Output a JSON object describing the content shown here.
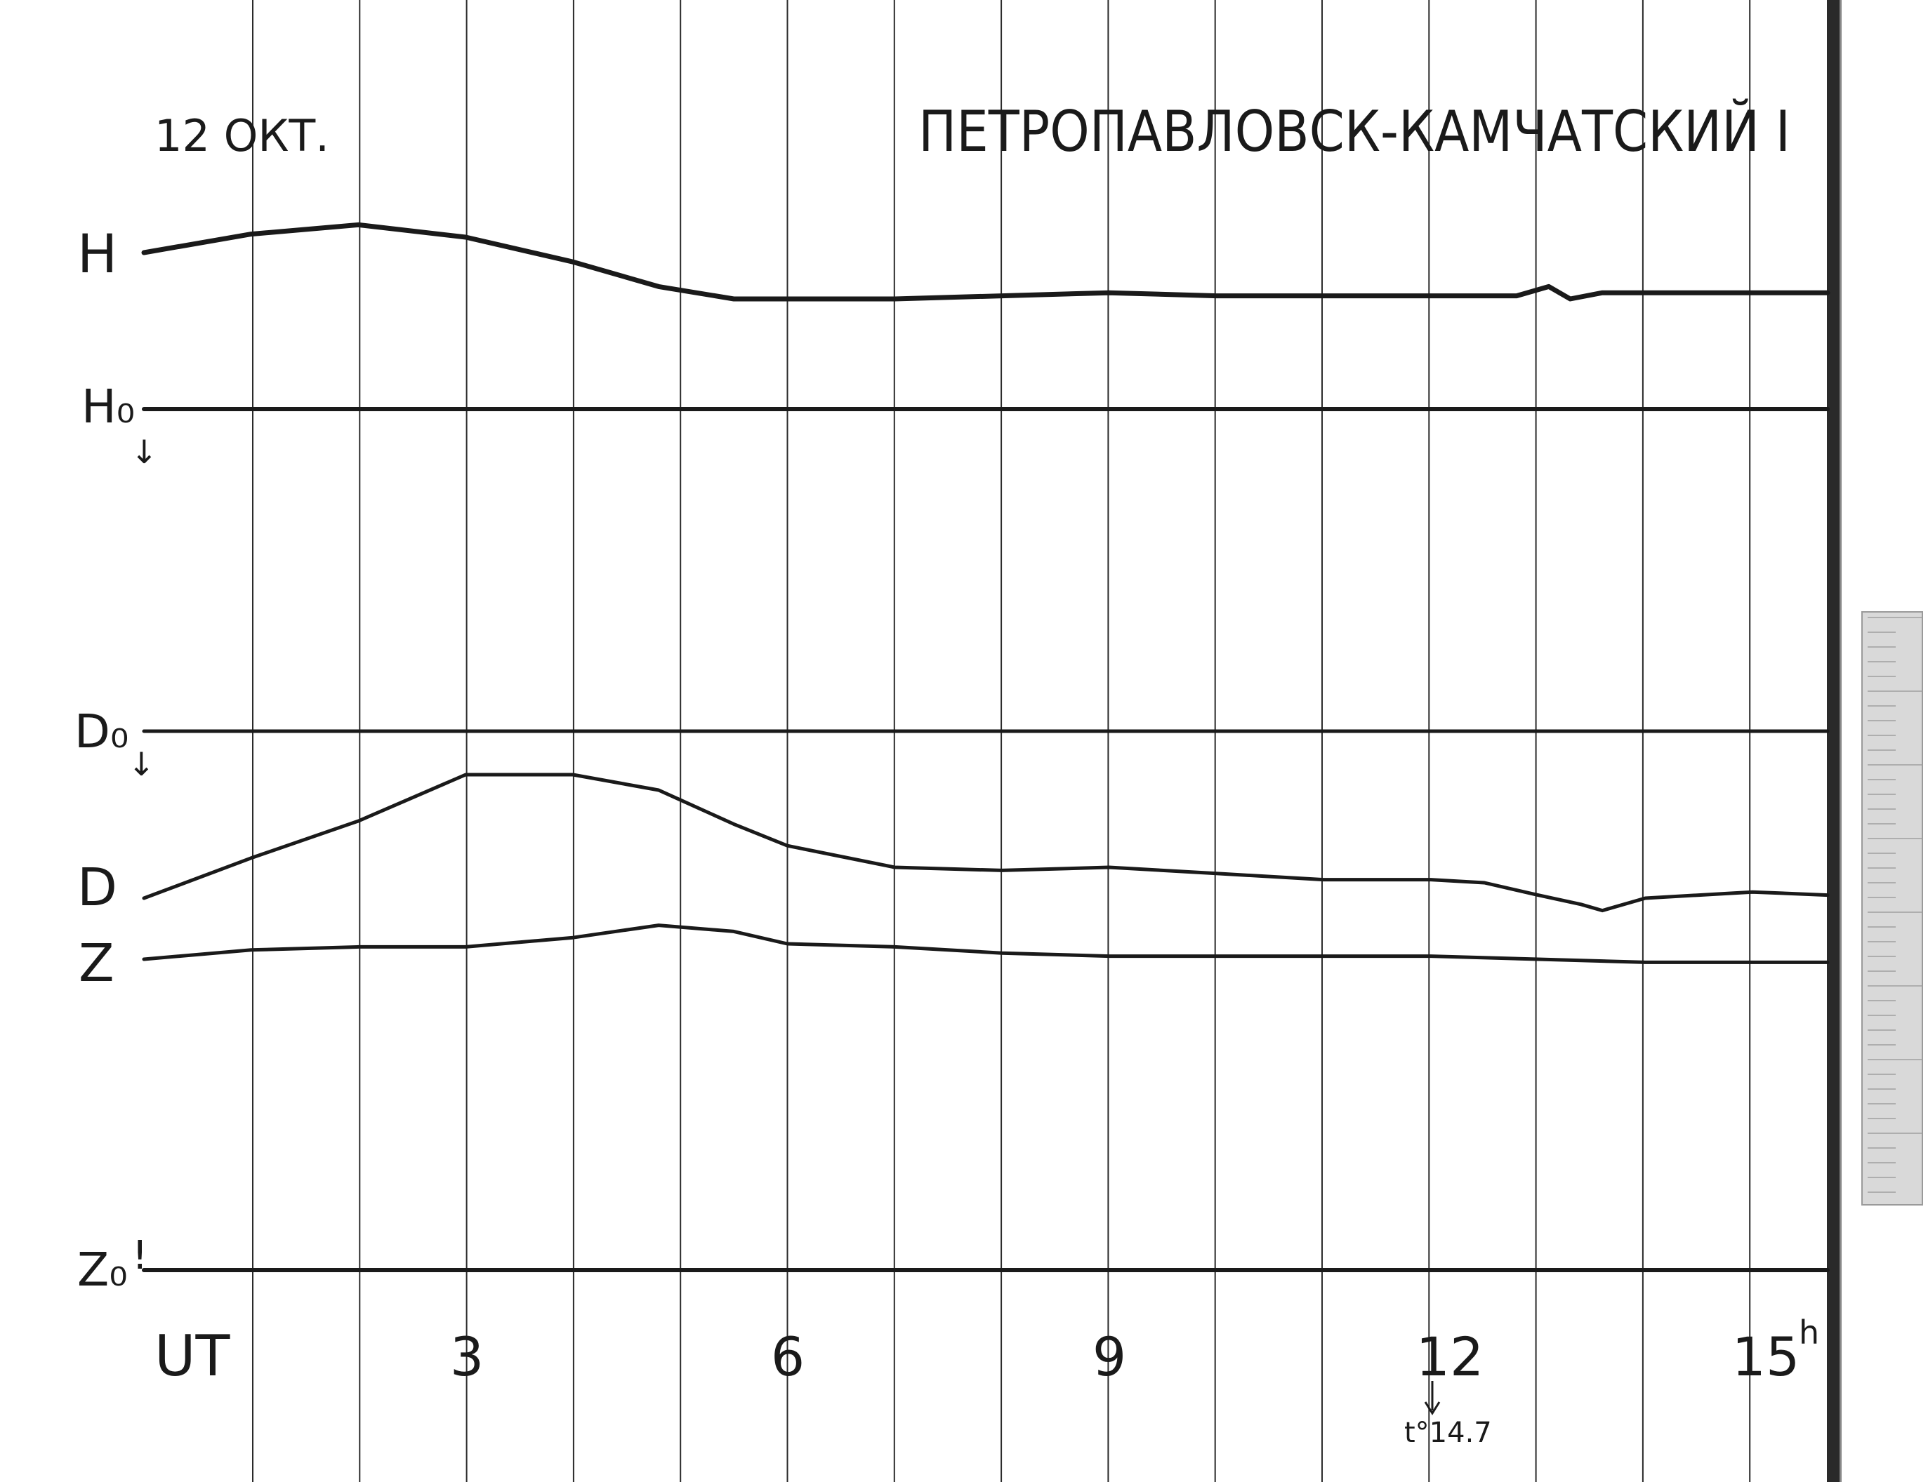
{
  "header": {
    "date": "12 ОКТ.",
    "station": "ПЕТРОПАВЛОВСК-КАМЧАТСКИЙ I"
  },
  "colors": {
    "paper": "#ffffff",
    "ink": "#1a1a1a",
    "grid": "#2a2a2a",
    "scale_strip": "#d9d9d9"
  },
  "chart_data": {
    "type": "line",
    "title": "ПЕТРОПАВЛОВСК-КАМЧАТСКИЙ I",
    "date": "12 ОКТ.",
    "xlabel": "UT",
    "x_unit": "h",
    "xlim": [
      0,
      15.7
    ],
    "hour_gridlines": [
      1,
      2,
      3,
      4,
      5,
      6,
      7,
      8,
      9,
      10,
      11,
      12,
      13,
      14,
      15
    ],
    "x_ticks": [
      {
        "label": "UT",
        "value": 0.5
      },
      {
        "label": "3",
        "value": 3
      },
      {
        "label": "6",
        "value": 6
      },
      {
        "label": "9",
        "value": 9
      },
      {
        "label": "12",
        "value": 12
      },
      {
        "label": "15",
        "value": 15,
        "suffix": "h"
      }
    ],
    "annotation": {
      "label": "t°14.7",
      "at_hour": 12
    },
    "series": [
      {
        "name": "H",
        "role": "variation",
        "baseline_label": "H",
        "points": [
          [
            0,
            0.0
          ],
          [
            1,
            -0.6
          ],
          [
            2,
            -0.9
          ],
          [
            3,
            -0.5
          ],
          [
            4,
            0.3
          ],
          [
            4.8,
            1.1
          ],
          [
            5.5,
            1.5
          ],
          [
            6,
            1.5
          ],
          [
            7,
            1.5
          ],
          [
            8,
            1.4
          ],
          [
            9,
            1.3
          ],
          [
            10,
            1.4
          ],
          [
            11,
            1.4
          ],
          [
            12,
            1.4
          ],
          [
            12.8,
            1.4
          ],
          [
            13.1,
            1.1
          ],
          [
            13.3,
            1.5
          ],
          [
            13.6,
            1.3
          ],
          [
            14,
            1.3
          ],
          [
            14.5,
            1.3
          ],
          [
            15,
            1.3
          ],
          [
            15.7,
            1.3
          ]
        ]
      },
      {
        "name": "H₀",
        "role": "baseline",
        "baseline_label": "H₀",
        "points": [
          [
            0,
            0
          ],
          [
            15.7,
            0
          ]
        ]
      },
      {
        "name": "D₀",
        "role": "baseline",
        "baseline_label": "D₀",
        "points": [
          [
            0,
            0
          ],
          [
            15.7,
            0
          ]
        ]
      },
      {
        "name": "D",
        "role": "variation",
        "baseline_label": "D",
        "points": [
          [
            0,
            0.0
          ],
          [
            1,
            -1.3
          ],
          [
            2,
            -2.5
          ],
          [
            3,
            -4.0
          ],
          [
            4,
            -4.0
          ],
          [
            4.8,
            -3.5
          ],
          [
            5.5,
            -2.4
          ],
          [
            6,
            -1.7
          ],
          [
            7,
            -1.0
          ],
          [
            8,
            -0.9
          ],
          [
            9,
            -1.0
          ],
          [
            10,
            -0.8
          ],
          [
            11,
            -0.6
          ],
          [
            12,
            -0.6
          ],
          [
            12.5,
            -0.5
          ],
          [
            13,
            -0.1
          ],
          [
            13.4,
            0.2
          ],
          [
            13.6,
            0.4
          ],
          [
            14,
            0.0
          ],
          [
            14.5,
            -0.1
          ],
          [
            15,
            -0.2
          ],
          [
            15.7,
            -0.1
          ]
        ]
      },
      {
        "name": "Z",
        "role": "variation",
        "baseline_label": "Z",
        "points": [
          [
            0,
            0.0
          ],
          [
            1,
            -0.3
          ],
          [
            2,
            -0.4
          ],
          [
            3,
            -0.4
          ],
          [
            4,
            -0.7
          ],
          [
            4.8,
            -1.1
          ],
          [
            5.5,
            -0.9
          ],
          [
            6,
            -0.5
          ],
          [
            7,
            -0.4
          ],
          [
            8,
            -0.2
          ],
          [
            9,
            -0.1
          ],
          [
            10,
            -0.1
          ],
          [
            11,
            -0.1
          ],
          [
            12,
            -0.1
          ],
          [
            13,
            0.0
          ],
          [
            14,
            0.1
          ],
          [
            15,
            0.1
          ],
          [
            15.7,
            0.1
          ]
        ]
      },
      {
        "name": "Z₀",
        "role": "baseline",
        "baseline_label": "Z₀",
        "points": [
          [
            0,
            0
          ],
          [
            15.7,
            0
          ]
        ]
      }
    ]
  }
}
